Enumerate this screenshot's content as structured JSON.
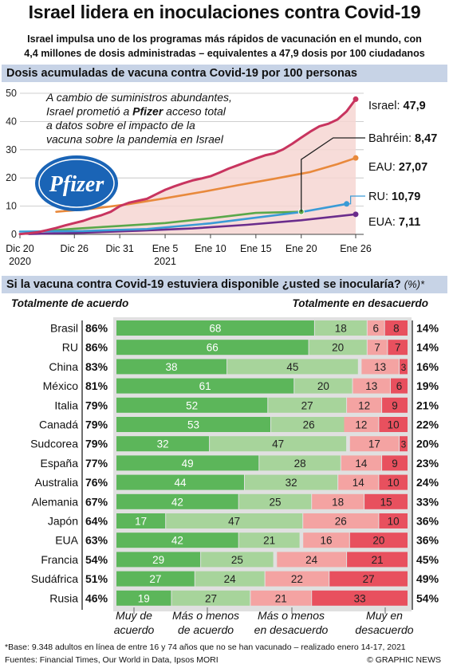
{
  "header": {
    "title": "Israel lidera en inoculaciones contra Covid-19",
    "subtitle_line1": "Israel impulsa uno de los programas más rápidos de vacunación en el mundo, con",
    "subtitle_line2": "4,4 millones de dosis administradas – equivalentes a 47,9 dosis por 100 ciudadanos"
  },
  "chart_data": [
    {
      "type": "line",
      "title": "Dosis acumuladas de vacuna contra Covid-19 por 100 personas",
      "x_ticks": [
        "Dic 20",
        "Dic 26",
        "Dic 31",
        "Ene 5",
        "Ene 10",
        "Ene 15",
        "Ene 20",
        "Ene 26"
      ],
      "x_tick_sublabels": {
        "Dic 20": "2020",
        "Ene 5": "2021"
      },
      "y_ticks": [
        0,
        10,
        20,
        30,
        40,
        50
      ],
      "ylim": [
        0,
        50
      ],
      "annotation": {
        "line1": "A cambio de suministros abundantes,",
        "line2_before": "Israel prometió a ",
        "line2_bold": "Pfizer",
        "line2_after": " acceso total",
        "line3": "a datos sobre el impacto de la",
        "line4": "vacuna sobre la pandemia en Israel"
      },
      "logo_text": "Pfizer",
      "series": [
        {
          "name": "Israel",
          "value_label": "47,9",
          "color": "#c8345f",
          "x": [
            "2020-12-20",
            "2020-12-21",
            "2020-12-22",
            "2020-12-23",
            "2020-12-24",
            "2020-12-25",
            "2020-12-26",
            "2020-12-27",
            "2020-12-28",
            "2020-12-29",
            "2020-12-30",
            "2020-12-31",
            "2021-01-01",
            "2021-01-02",
            "2021-01-03",
            "2021-01-04",
            "2021-01-05",
            "2021-01-06",
            "2021-01-07",
            "2021-01-08",
            "2021-01-09",
            "2021-01-10",
            "2021-01-11",
            "2021-01-12",
            "2021-01-13",
            "2021-01-14",
            "2021-01-15",
            "2021-01-16",
            "2021-01-17",
            "2021-01-18",
            "2021-01-19",
            "2021-01-20",
            "2021-01-21",
            "2021-01-22",
            "2021-01-23",
            "2021-01-24",
            "2021-01-25",
            "2021-01-26"
          ],
          "y": [
            0.1,
            0.4,
            0.8,
            1.5,
            2.3,
            3.2,
            4.0,
            4.8,
            5.9,
            6.8,
            8.0,
            10.0,
            11.2,
            11.9,
            12.6,
            14.2,
            15.8,
            17.0,
            18.1,
            19.1,
            19.8,
            20.6,
            21.9,
            23.3,
            24.5,
            25.7,
            26.9,
            28.0,
            28.7,
            30.1,
            32.1,
            34.3,
            36.4,
            38.3,
            39.2,
            40.7,
            43.6,
            47.9
          ]
        },
        {
          "name": "Bahréin",
          "value_label": "8,47",
          "color": "#3c3c3c",
          "x": [
            "2021-01-19",
            "2021-01-26"
          ],
          "y": [
            8.3,
            8.47
          ]
        },
        {
          "name": "EAU",
          "value_label": "27,07",
          "color": "#e8893c",
          "x": [
            "2020-12-24",
            "2020-12-28",
            "2021-01-01",
            "2021-01-05",
            "2021-01-09",
            "2021-01-13",
            "2021-01-17",
            "2021-01-21",
            "2021-01-24",
            "2021-01-26"
          ],
          "y": [
            8.0,
            9.1,
            10.7,
            12.8,
            15.0,
            17.4,
            19.7,
            22.1,
            24.9,
            27.07
          ]
        },
        {
          "name": "RU",
          "value_label": "10,79",
          "color": "#3a9bd6",
          "x": [
            "2020-12-20",
            "2020-12-27",
            "2021-01-03",
            "2021-01-10",
            "2021-01-15",
            "2021-01-20",
            "2021-01-25"
          ],
          "y": [
            1.0,
            1.2,
            1.9,
            3.9,
            5.9,
            7.9,
            10.79
          ]
        },
        {
          "name": "EUA",
          "value_label": "7,11",
          "color": "#6a2c8c",
          "x": [
            "2020-12-21",
            "2020-12-27",
            "2021-01-02",
            "2021-01-08",
            "2021-01-14",
            "2021-01-20",
            "2021-01-26"
          ],
          "y": [
            0.1,
            0.6,
            1.3,
            2.1,
            3.4,
            5.0,
            7.11
          ]
        },
        {
          "name": "",
          "value_label": "",
          "color": "#5aa84a",
          "x": [
            "2020-12-22",
            "2020-12-26",
            "2020-12-31",
            "2021-01-05",
            "2021-01-10",
            "2021-01-15",
            "2021-01-20"
          ],
          "y": [
            1.0,
            2.0,
            3.0,
            4.0,
            5.7,
            7.6,
            8.0
          ]
        }
      ]
    },
    {
      "type": "bar",
      "stacked": true,
      "orientation": "horizontal",
      "title": "Si la vacuna contra Covid-19 estuviera disponible ¿usted se inocularía?",
      "unit": "(%)*",
      "left_heading": "Totalmente de acuerdo",
      "right_heading": "Totalmente en desacuerdo",
      "segment_names": [
        "Muy de acuerdo",
        "Más o menos de acuerdo",
        "Más o menos en desacuerdo",
        "Muy en desacuerdo"
      ],
      "segment_colors": [
        "#5cb65a",
        "#a7d49b",
        "#f4a3a2",
        "#e8505e"
      ],
      "categories": [
        "Brasil",
        "RU",
        "China",
        "México",
        "Italia",
        "Canadá",
        "Sudcorea",
        "España",
        "Australia",
        "Alemania",
        "Japón",
        "EUA",
        "Francia",
        "Sudáfrica",
        "Rusia"
      ],
      "agree_totals": [
        "86%",
        "86%",
        "83%",
        "81%",
        "79%",
        "79%",
        "79%",
        "77%",
        "76%",
        "67%",
        "64%",
        "63%",
        "54%",
        "51%",
        "46%"
      ],
      "disagree_totals": [
        "14%",
        "14%",
        "16%",
        "19%",
        "21%",
        "22%",
        "20%",
        "23%",
        "24%",
        "33%",
        "36%",
        "36%",
        "45%",
        "49%",
        "54%"
      ],
      "series": [
        {
          "name": "Muy de acuerdo",
          "values": [
            68,
            66,
            38,
            61,
            52,
            53,
            32,
            49,
            44,
            42,
            17,
            42,
            29,
            27,
            19
          ]
        },
        {
          "name": "Más o menos de acuerdo",
          "values": [
            18,
            20,
            45,
            20,
            27,
            26,
            47,
            28,
            32,
            25,
            47,
            21,
            25,
            24,
            27
          ]
        },
        {
          "name": "Más o menos en desacuerdo",
          "values": [
            6,
            7,
            13,
            13,
            12,
            12,
            17,
            14,
            14,
            18,
            26,
            16,
            24,
            22,
            21
          ]
        },
        {
          "name": "Muy en desacuerdo",
          "values": [
            8,
            7,
            3,
            6,
            9,
            10,
            3,
            9,
            10,
            15,
            10,
            20,
            21,
            27,
            33
          ]
        }
      ],
      "legend_lines": [
        [
          "Muy de",
          "acuerdo"
        ],
        [
          "Más o menos",
          "de acuerdo"
        ],
        [
          "Más o menos",
          "en desacuerdo"
        ],
        [
          "Muy  en",
          "desacuerdo"
        ]
      ]
    }
  ],
  "footer": {
    "footnote": "*Base: 9.348 adultos en línea de entre 16 y 74 años que no se han vacunado – realizado enero 14-17, 2021",
    "sources": "Fuentes: Financial Times, Our World in Data, Ipsos MORI",
    "credit": "© GRAPHIC NEWS"
  }
}
